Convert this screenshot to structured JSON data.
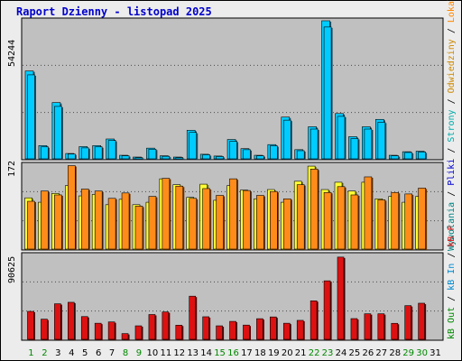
{
  "title": "Raport Dzienny -  listopad 2025",
  "colors": {
    "frame_bg": "#ececec",
    "plot_bg": "#c0c0c0",
    "title": "#0000cc",
    "bar_visits": "#00ccff",
    "bar_pages": "#ffff33",
    "bar_files": "#ff8c1a",
    "bar_hits": "#dd1111",
    "weekend_label": "#008800",
    "weekday_label": "#000000"
  },
  "right_legend": {
    "top": [
      {
        "text": "Wywołania",
        "color": "#008080"
      },
      {
        "text": "Pliki",
        "color": "#0000cc"
      },
      {
        "text": "Strony",
        "color": "#00aaaa"
      },
      {
        "text": "Odwiedziny",
        "color": "#cc8800"
      },
      {
        "text": "Lokalizacje",
        "color": "#ff8800"
      }
    ],
    "bottom": [
      {
        "text": "kB Out",
        "color": "#008800"
      },
      {
        "text": "kB In",
        "color": "#0088cc"
      },
      {
        "text": "kB F",
        "color": "#dd1111"
      }
    ]
  },
  "chart_data": [
    {
      "type": "bar",
      "panel": "top",
      "ymax_label": "54244",
      "ylim": [
        0,
        54244
      ],
      "categories": [
        "1",
        "2",
        "3",
        "4",
        "5",
        "6",
        "7",
        "8",
        "9",
        "10",
        "11",
        "12",
        "13",
        "14",
        "15",
        "16",
        "17",
        "18",
        "19",
        "20",
        "21",
        "22",
        "23",
        "24",
        "25",
        "26",
        "27",
        "28",
        "29",
        "30",
        "31"
      ],
      "series": [
        {
          "values": [
            34500,
            5200,
            22100,
            2100,
            4800,
            5200,
            7800,
            1400,
            700,
            4200,
            1200,
            700,
            11200,
            1800,
            1100,
            7600,
            4000,
            1400,
            5600,
            16400,
            3600,
            12600,
            54244,
            17800,
            8700,
            12600,
            15500,
            1400,
            2800,
            3000,
            0
          ]
        },
        {
          "values": [
            33000,
            4700,
            20600,
            1900,
            4300,
            4700,
            7200,
            1200,
            500,
            3800,
            1000,
            500,
            10400,
            1600,
            900,
            6900,
            3600,
            1200,
            5100,
            15200,
            3200,
            11700,
            51800,
            16700,
            8000,
            11700,
            14400,
            1200,
            2500,
            2700,
            0
          ]
        }
      ]
    },
    {
      "type": "bar",
      "panel": "middle",
      "ymax_label": "172",
      "ylim": [
        0,
        172
      ],
      "categories": [
        "1",
        "2",
        "3",
        "4",
        "5",
        "6",
        "7",
        "8",
        "9",
        "10",
        "11",
        "12",
        "13",
        "14",
        "15",
        "16",
        "17",
        "18",
        "19",
        "20",
        "21",
        "22",
        "23",
        "24",
        "25",
        "26",
        "27",
        "28",
        "29",
        "30",
        "31"
      ],
      "series": [
        {
          "values": [
            105,
            96,
            114,
            130,
            109,
            112,
            91,
            102,
            91,
            96,
            144,
            132,
            106,
            133,
            100,
            130,
            121,
            103,
            122,
            96,
            139,
            170,
            122,
            137,
            119,
            137,
            103,
            108,
            96,
            108,
            0
          ]
        },
        {
          "values": [
            98,
            119,
            111,
            171,
            123,
            119,
            104,
            115,
            88,
            108,
            145,
            129,
            104,
            124,
            110,
            144,
            120,
            110,
            118,
            103,
            132,
            164,
            116,
            128,
            111,
            148,
            101,
            116,
            113,
            125,
            0
          ]
        }
      ]
    },
    {
      "type": "bar",
      "panel": "bottom",
      "ymax_label": "90625",
      "ylim": [
        0,
        90625
      ],
      "categories": [
        "1",
        "2",
        "3",
        "4",
        "5",
        "6",
        "7",
        "8",
        "9",
        "10",
        "11",
        "12",
        "13",
        "14",
        "15",
        "16",
        "17",
        "18",
        "19",
        "20",
        "21",
        "22",
        "23",
        "24",
        "25",
        "26",
        "27",
        "28",
        "29",
        "30",
        "31"
      ],
      "series": [
        {
          "values": [
            30200,
            21800,
            38400,
            40000,
            24600,
            17400,
            18800,
            6200,
            14600,
            26800,
            29600,
            15300,
            46600,
            24400,
            14600,
            19400,
            15400,
            22300,
            24200,
            17400,
            20500,
            41600,
            63200,
            88800,
            22400,
            27600,
            27600,
            17300,
            36400,
            39000,
            0
          ]
        }
      ]
    }
  ],
  "x_labels": [
    "1",
    "2",
    "3",
    "4",
    "5",
    "6",
    "7",
    "8",
    "9",
    "10",
    "11",
    "12",
    "13",
    "14",
    "15",
    "16",
    "17",
    "18",
    "19",
    "20",
    "21",
    "22",
    "23",
    "24",
    "25",
    "26",
    "27",
    "28",
    "29",
    "30",
    "31"
  ],
  "weekend_days": [
    "1",
    "2",
    "8",
    "9",
    "15",
    "16",
    "22",
    "23",
    "29",
    "30"
  ]
}
